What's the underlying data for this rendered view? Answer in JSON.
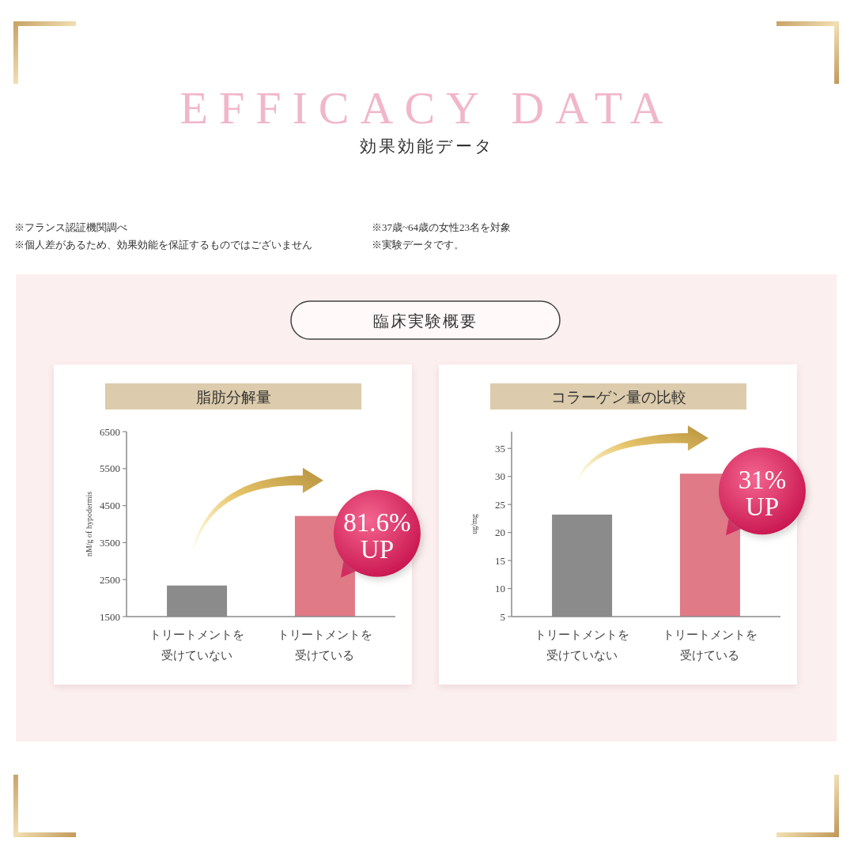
{
  "chart_data": [
    {
      "type": "other",
      "title": "EFFICACY DATA",
      "subtitle": "効果効能データ",
      "annotations": [
        "※フランス認証機関調べ",
        "※37歳~64歳の女性23名を対象",
        "※個人差があるため、効果効能を保証するものではございません",
        "※実験データです。",
        "臨床実験概要"
      ]
    },
    {
      "type": "bar",
      "title": "脂肪分解量",
      "ylabel": "nM/g of hypodermis",
      "categories": [
        "トリートメントを受けていない",
        "トリートメントを受けている"
      ],
      "values": [
        2340,
        4220
      ],
      "colors": [
        "#8b8b8b",
        "#e07a87"
      ],
      "ylim": [
        1500,
        6500
      ],
      "yticks": [
        1500,
        2500,
        3500,
        4500,
        5500,
        6500
      ],
      "annotations": [
        {
          "text": "81.6%\nUP",
          "x": "トリートメントを受けている",
          "y": 4220
        }
      ]
    },
    {
      "type": "bar",
      "title": "コラーゲン量の比較",
      "ylabel": "ug/mg",
      "categories": [
        "トリートメントを受けていない",
        "トリートメントを受けている"
      ],
      "values": [
        23.2,
        30.5
      ],
      "colors": [
        "#8b8b8b",
        "#e07a87"
      ],
      "ylim": [
        5,
        38
      ],
      "yticks": [
        5,
        10,
        15,
        20,
        25,
        30,
        35
      ],
      "annotations": [
        {
          "text": "31%\nUP",
          "x": "トリートメントを受けている",
          "y": 30.5
        }
      ]
    }
  ]
}
